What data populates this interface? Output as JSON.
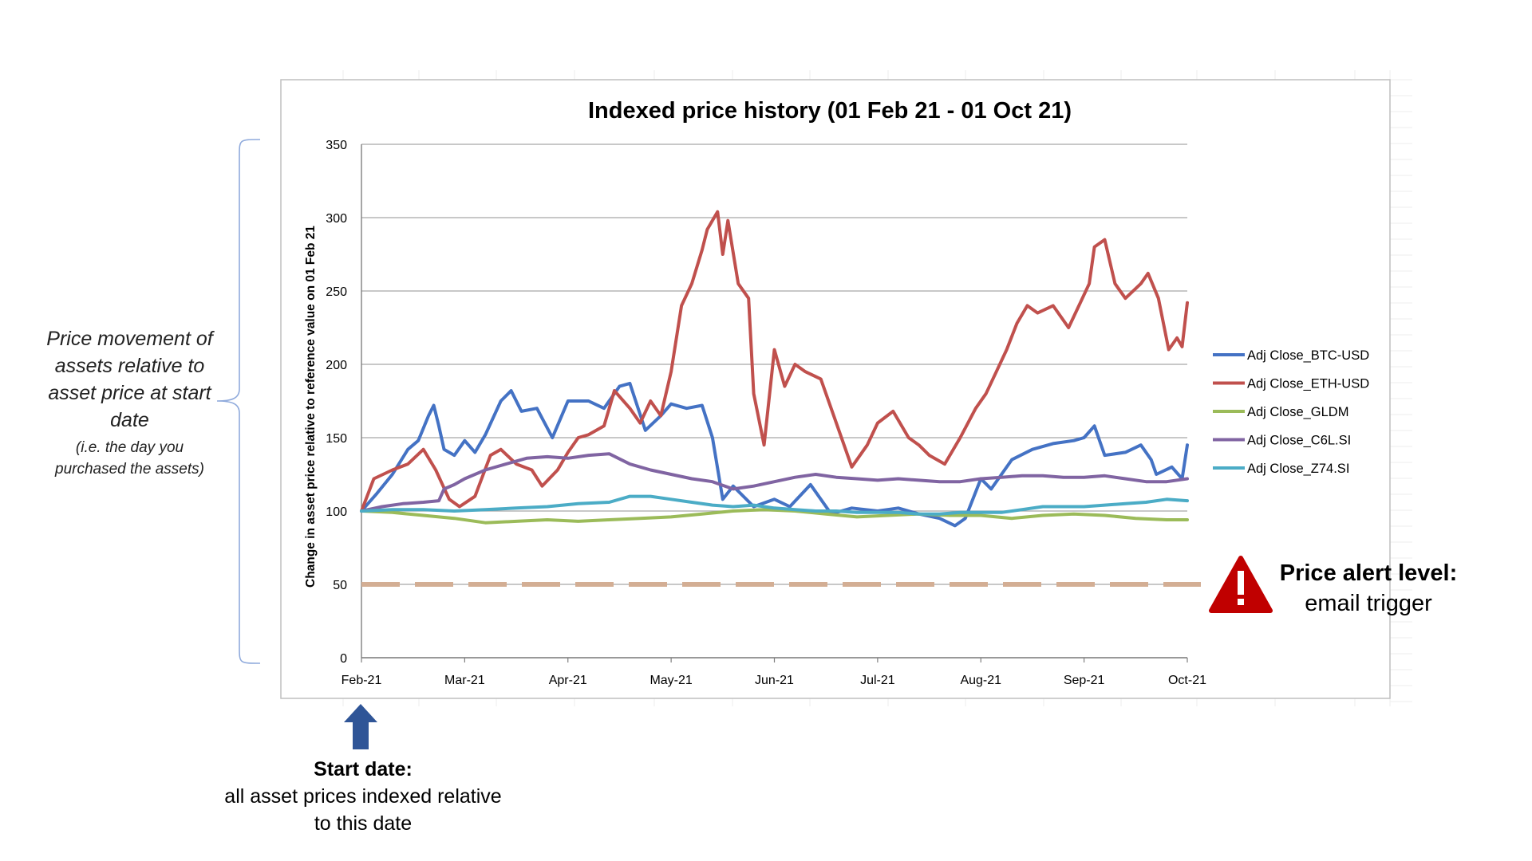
{
  "chart_data": {
    "type": "line",
    "title": "Indexed price history (01 Feb 21 - 01 Oct 21)",
    "xlabel": "",
    "ylabel": "Change in asset price relative to reference value on 01 Feb 21",
    "ylim": [
      0,
      350
    ],
    "yticks": [
      0,
      50,
      100,
      150,
      200,
      250,
      300,
      350
    ],
    "x_range_months": [
      0,
      8
    ],
    "xticks": [
      {
        "label": "Feb-21",
        "pos": 0
      },
      {
        "label": "Mar-21",
        "pos": 1
      },
      {
        "label": "Apr-21",
        "pos": 2
      },
      {
        "label": "May-21",
        "pos": 3
      },
      {
        "label": "Jun-21",
        "pos": 4
      },
      {
        "label": "Jul-21",
        "pos": 5
      },
      {
        "label": "Aug-21",
        "pos": 6
      },
      {
        "label": "Sep-21",
        "pos": 7
      },
      {
        "label": "Oct-21",
        "pos": 8
      }
    ],
    "grid": true,
    "legend_position": "right",
    "alert_level": {
      "value": 50,
      "style": "dashed",
      "color": "#d3ae94"
    },
    "series": [
      {
        "name": "Adj Close_BTC-USD",
        "color": "#4472c4",
        "points": [
          [
            0,
            100
          ],
          [
            0.15,
            112
          ],
          [
            0.3,
            125
          ],
          [
            0.45,
            142
          ],
          [
            0.55,
            148
          ],
          [
            0.65,
            165
          ],
          [
            0.7,
            172
          ],
          [
            0.75,
            158
          ],
          [
            0.8,
            142
          ],
          [
            0.9,
            138
          ],
          [
            1.0,
            148
          ],
          [
            1.1,
            140
          ],
          [
            1.2,
            152
          ],
          [
            1.35,
            175
          ],
          [
            1.45,
            182
          ],
          [
            1.55,
            168
          ],
          [
            1.7,
            170
          ],
          [
            1.85,
            150
          ],
          [
            2.0,
            175
          ],
          [
            2.2,
            175
          ],
          [
            2.35,
            170
          ],
          [
            2.5,
            185
          ],
          [
            2.6,
            187
          ],
          [
            2.75,
            155
          ],
          [
            2.9,
            165
          ],
          [
            3.0,
            173
          ],
          [
            3.15,
            170
          ],
          [
            3.3,
            172
          ],
          [
            3.4,
            150
          ],
          [
            3.5,
            108
          ],
          [
            3.6,
            117
          ],
          [
            3.8,
            103
          ],
          [
            4.0,
            108
          ],
          [
            4.15,
            103
          ],
          [
            4.35,
            118
          ],
          [
            4.55,
            98
          ],
          [
            4.75,
            102
          ],
          [
            5.0,
            100
          ],
          [
            5.2,
            102
          ],
          [
            5.4,
            98
          ],
          [
            5.6,
            95
          ],
          [
            5.75,
            90
          ],
          [
            5.85,
            95
          ],
          [
            6.0,
            122
          ],
          [
            6.1,
            115
          ],
          [
            6.3,
            135
          ],
          [
            6.5,
            142
          ],
          [
            6.7,
            146
          ],
          [
            6.9,
            148
          ],
          [
            7.0,
            150
          ],
          [
            7.1,
            158
          ],
          [
            7.2,
            138
          ],
          [
            7.4,
            140
          ],
          [
            7.55,
            145
          ],
          [
            7.65,
            135
          ],
          [
            7.7,
            125
          ],
          [
            7.85,
            130
          ],
          [
            7.95,
            122
          ],
          [
            8.0,
            145
          ]
        ]
      },
      {
        "name": "Adj Close_ETH-USD",
        "color": "#c0504d",
        "points": [
          [
            0,
            100
          ],
          [
            0.12,
            122
          ],
          [
            0.3,
            128
          ],
          [
            0.45,
            132
          ],
          [
            0.6,
            142
          ],
          [
            0.72,
            128
          ],
          [
            0.85,
            108
          ],
          [
            0.95,
            103
          ],
          [
            1.1,
            110
          ],
          [
            1.25,
            138
          ],
          [
            1.35,
            142
          ],
          [
            1.5,
            132
          ],
          [
            1.65,
            128
          ],
          [
            1.75,
            117
          ],
          [
            1.9,
            128
          ],
          [
            2.0,
            140
          ],
          [
            2.1,
            150
          ],
          [
            2.2,
            152
          ],
          [
            2.35,
            158
          ],
          [
            2.45,
            182
          ],
          [
            2.6,
            170
          ],
          [
            2.7,
            160
          ],
          [
            2.8,
            175
          ],
          [
            2.9,
            165
          ],
          [
            3.0,
            195
          ],
          [
            3.1,
            240
          ],
          [
            3.2,
            255
          ],
          [
            3.3,
            278
          ],
          [
            3.35,
            292
          ],
          [
            3.45,
            304
          ],
          [
            3.5,
            275
          ],
          [
            3.55,
            298
          ],
          [
            3.65,
            255
          ],
          [
            3.75,
            245
          ],
          [
            3.8,
            180
          ],
          [
            3.9,
            145
          ],
          [
            4.0,
            210
          ],
          [
            4.1,
            185
          ],
          [
            4.2,
            200
          ],
          [
            4.3,
            195
          ],
          [
            4.45,
            190
          ],
          [
            4.6,
            160
          ],
          [
            4.75,
            130
          ],
          [
            4.9,
            145
          ],
          [
            5.0,
            160
          ],
          [
            5.15,
            168
          ],
          [
            5.3,
            150
          ],
          [
            5.4,
            145
          ],
          [
            5.5,
            138
          ],
          [
            5.65,
            132
          ],
          [
            5.8,
            150
          ],
          [
            5.95,
            170
          ],
          [
            6.05,
            180
          ],
          [
            6.15,
            195
          ],
          [
            6.25,
            210
          ],
          [
            6.35,
            228
          ],
          [
            6.45,
            240
          ],
          [
            6.55,
            235
          ],
          [
            6.7,
            240
          ],
          [
            6.85,
            225
          ],
          [
            6.95,
            240
          ],
          [
            7.05,
            255
          ],
          [
            7.1,
            280
          ],
          [
            7.2,
            285
          ],
          [
            7.3,
            255
          ],
          [
            7.4,
            245
          ],
          [
            7.55,
            255
          ],
          [
            7.62,
            262
          ],
          [
            7.72,
            245
          ],
          [
            7.82,
            210
          ],
          [
            7.9,
            218
          ],
          [
            7.95,
            212
          ],
          [
            8.0,
            242
          ]
        ]
      },
      {
        "name": "Adj Close_GLDM",
        "color": "#9bbb59",
        "points": [
          [
            0,
            100
          ],
          [
            0.3,
            99
          ],
          [
            0.6,
            97
          ],
          [
            0.9,
            95
          ],
          [
            1.2,
            92
          ],
          [
            1.5,
            93
          ],
          [
            1.8,
            94
          ],
          [
            2.1,
            93
          ],
          [
            2.4,
            94
          ],
          [
            2.7,
            95
          ],
          [
            3.0,
            96
          ],
          [
            3.3,
            98
          ],
          [
            3.6,
            100
          ],
          [
            3.9,
            101
          ],
          [
            4.2,
            100
          ],
          [
            4.5,
            98
          ],
          [
            4.8,
            96
          ],
          [
            5.1,
            97
          ],
          [
            5.4,
            98
          ],
          [
            5.7,
            97
          ],
          [
            6.0,
            97
          ],
          [
            6.3,
            95
          ],
          [
            6.6,
            97
          ],
          [
            6.9,
            98
          ],
          [
            7.2,
            97
          ],
          [
            7.5,
            95
          ],
          [
            7.8,
            94
          ],
          [
            8.0,
            94
          ]
        ]
      },
      {
        "name": "Adj Close_C6L.SI",
        "color": "#8064a2",
        "points": [
          [
            0,
            100
          ],
          [
            0.2,
            103
          ],
          [
            0.4,
            105
          ],
          [
            0.6,
            106
          ],
          [
            0.75,
            107
          ],
          [
            0.8,
            115
          ],
          [
            0.9,
            118
          ],
          [
            1.0,
            122
          ],
          [
            1.2,
            128
          ],
          [
            1.4,
            132
          ],
          [
            1.6,
            136
          ],
          [
            1.8,
            137
          ],
          [
            2.0,
            136
          ],
          [
            2.2,
            138
          ],
          [
            2.4,
            139
          ],
          [
            2.6,
            132
          ],
          [
            2.8,
            128
          ],
          [
            3.0,
            125
          ],
          [
            3.2,
            122
          ],
          [
            3.4,
            120
          ],
          [
            3.6,
            115
          ],
          [
            3.8,
            117
          ],
          [
            4.0,
            120
          ],
          [
            4.2,
            123
          ],
          [
            4.4,
            125
          ],
          [
            4.6,
            123
          ],
          [
            4.8,
            122
          ],
          [
            5.0,
            121
          ],
          [
            5.2,
            122
          ],
          [
            5.4,
            121
          ],
          [
            5.6,
            120
          ],
          [
            5.8,
            120
          ],
          [
            6.0,
            122
          ],
          [
            6.2,
            123
          ],
          [
            6.4,
            124
          ],
          [
            6.6,
            124
          ],
          [
            6.8,
            123
          ],
          [
            7.0,
            123
          ],
          [
            7.2,
            124
          ],
          [
            7.4,
            122
          ],
          [
            7.6,
            120
          ],
          [
            7.8,
            120
          ],
          [
            8.0,
            122
          ]
        ]
      },
      {
        "name": "Adj Close_Z74.SI",
        "color": "#4bacc6",
        "points": [
          [
            0,
            100
          ],
          [
            0.3,
            101
          ],
          [
            0.6,
            101
          ],
          [
            0.9,
            100
          ],
          [
            1.2,
            101
          ],
          [
            1.5,
            102
          ],
          [
            1.8,
            103
          ],
          [
            2.1,
            105
          ],
          [
            2.4,
            106
          ],
          [
            2.6,
            110
          ],
          [
            2.8,
            110
          ],
          [
            3.0,
            108
          ],
          [
            3.2,
            106
          ],
          [
            3.4,
            104
          ],
          [
            3.6,
            103
          ],
          [
            3.8,
            104
          ],
          [
            4.0,
            102
          ],
          [
            4.2,
            101
          ],
          [
            4.4,
            100
          ],
          [
            4.6,
            100
          ],
          [
            4.8,
            99
          ],
          [
            5.0,
            99
          ],
          [
            5.2,
            99
          ],
          [
            5.4,
            98
          ],
          [
            5.6,
            98
          ],
          [
            5.8,
            99
          ],
          [
            6.0,
            99
          ],
          [
            6.2,
            99
          ],
          [
            6.4,
            101
          ],
          [
            6.6,
            103
          ],
          [
            6.8,
            103
          ],
          [
            7.0,
            103
          ],
          [
            7.2,
            104
          ],
          [
            7.4,
            105
          ],
          [
            7.6,
            106
          ],
          [
            7.8,
            108
          ],
          [
            8.0,
            107
          ]
        ]
      }
    ]
  },
  "annotations": {
    "left_main": "Price movement of assets relative to asset price at start date",
    "left_sub": "(i.e. the day you purchased the assets)",
    "start_title": "Start date:",
    "start_body": "all asset prices indexed relative to this date",
    "alert_title": "Price alert level:",
    "alert_body": "email trigger",
    "alert_icon": "warning-triangle-icon",
    "alert_icon_color": "#c00000",
    "start_arrow_color": "#2f5597"
  }
}
